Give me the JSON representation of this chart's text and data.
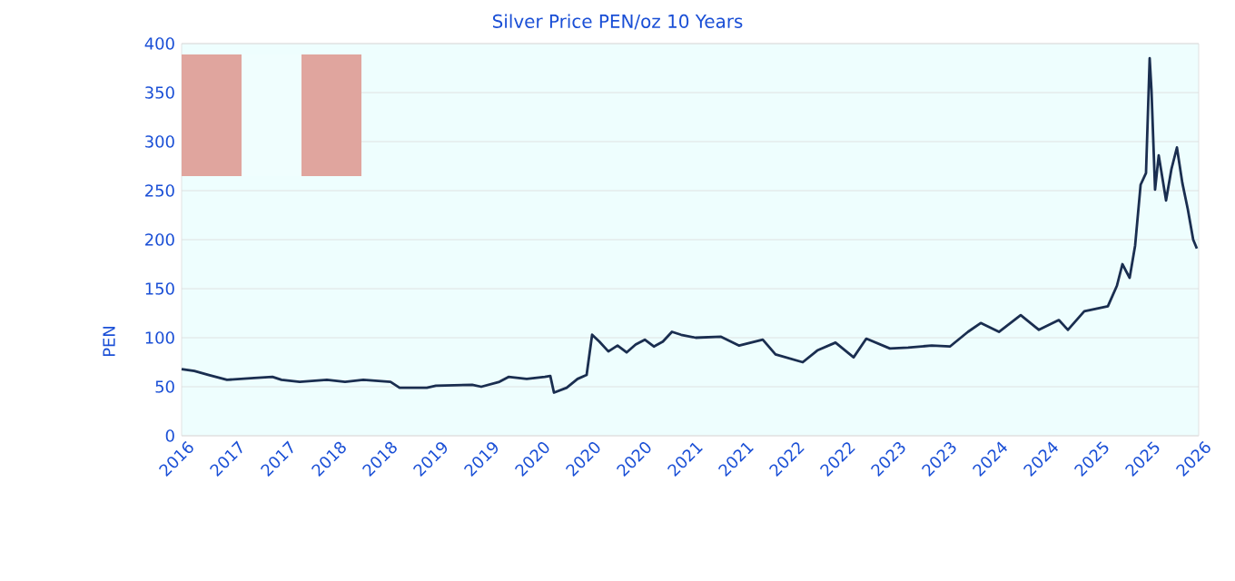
{
  "chart_data": {
    "type": "line",
    "title": "Silver Price PEN/oz 10 Years",
    "ylabel": "PEN",
    "x": [
      2016.0,
      2016.125,
      2016.268,
      2016.446,
      2016.714,
      2016.893,
      2016.982,
      2017.161,
      2017.429,
      2017.607,
      2017.786,
      2018.054,
      2018.143,
      2018.411,
      2018.5,
      2018.857,
      2018.946,
      2019.125,
      2019.214,
      2019.393,
      2019.571,
      2019.625,
      2019.661,
      2019.786,
      2019.893,
      2019.982,
      2020.036,
      2020.107,
      2020.196,
      2020.286,
      2020.375,
      2020.464,
      2020.554,
      2020.643,
      2020.732,
      2020.821,
      2020.911,
      2021.054,
      2021.304,
      2021.482,
      2021.714,
      2021.839,
      2022.107,
      2022.25,
      2022.429,
      2022.607,
      2022.732,
      2022.964,
      2023.143,
      2023.375,
      2023.554,
      2023.732,
      2023.857,
      2024.036,
      2024.25,
      2024.429,
      2024.625,
      2024.714,
      2024.875,
      2025.107,
      2025.196,
      2025.25,
      2025.321,
      2025.375,
      2025.429,
      2025.482,
      2025.518,
      2025.536,
      2025.571,
      2025.607,
      2025.679,
      2025.732,
      2025.786,
      2025.839,
      2025.893,
      2025.946,
      2025.982
    ],
    "series": [
      {
        "color": "#1a2e50",
        "values": [
          68,
          66,
          62,
          57,
          59,
          60,
          57,
          55,
          57,
          55,
          57,
          55,
          49,
          49,
          51,
          52,
          50,
          55,
          60,
          58,
          60,
          61,
          44,
          49,
          58,
          62,
          103,
          96,
          86,
          92,
          85,
          93,
          98,
          91,
          96,
          106,
          103,
          100,
          101,
          92,
          98,
          83,
          75,
          87,
          95,
          80,
          99,
          89,
          90,
          92,
          91,
          106,
          115,
          106,
          123,
          108,
          118,
          108,
          127,
          132,
          153,
          175,
          161,
          194,
          256,
          268,
          385,
          352,
          251,
          286,
          240,
          272,
          294,
          258,
          231,
          200,
          191
        ]
      }
    ],
    "xlim": [
      2016,
      2026
    ],
    "ylim": [
      0,
      400
    ],
    "yticks": [
      0,
      50,
      100,
      150,
      200,
      250,
      300,
      350,
      400
    ],
    "xticks": [
      {
        "value": 2016,
        "label": "2016"
      },
      {
        "value": 2016.5,
        "label": "2017"
      },
      {
        "value": 2017,
        "label": "2017"
      },
      {
        "value": 2017.5,
        "label": "2018"
      },
      {
        "value": 2018,
        "label": "2018"
      },
      {
        "value": 2018.5,
        "label": "2019"
      },
      {
        "value": 2019,
        "label": "2019"
      },
      {
        "value": 2019.5,
        "label": "2020"
      },
      {
        "value": 2020,
        "label": "2020"
      },
      {
        "value": 2020.5,
        "label": "2020"
      },
      {
        "value": 2021,
        "label": "2021"
      },
      {
        "value": 2021.5,
        "label": "2021"
      },
      {
        "value": 2022,
        "label": "2022"
      },
      {
        "value": 2022.5,
        "label": "2022"
      },
      {
        "value": 2023,
        "label": "2023"
      },
      {
        "value": 2023.5,
        "label": "2023"
      },
      {
        "value": 2024,
        "label": "2024"
      },
      {
        "value": 2024.5,
        "label": "2024"
      },
      {
        "value": 2025,
        "label": "2025"
      },
      {
        "value": 2025.5,
        "label": "2025"
      },
      {
        "value": 2026,
        "label": "2026"
      }
    ],
    "grid": "y",
    "legend": false,
    "marker": "none",
    "line_style": "solid"
  }
}
